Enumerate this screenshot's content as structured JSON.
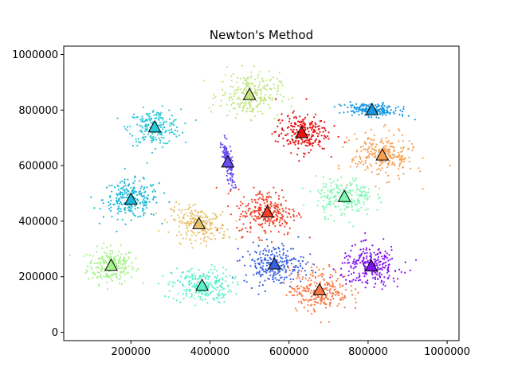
{
  "chart_data": {
    "type": "scatter",
    "title": "Newton's Method",
    "xlabel": "",
    "ylabel": "",
    "xlim": [
      30000,
      1030000
    ],
    "ylim": [
      -30000,
      1030000
    ],
    "x_ticks": [
      200000,
      400000,
      600000,
      800000,
      1000000
    ],
    "y_ticks": [
      0,
      200000,
      400000,
      600000,
      800000,
      1000000
    ],
    "x_tick_labels": [
      "200000",
      "400000",
      "600000",
      "800000",
      "1000000"
    ],
    "y_tick_labels": [
      "0",
      "200000",
      "400000",
      "600000",
      "800000",
      "1000000"
    ],
    "grid": false,
    "legend": "none",
    "clusters": [
      {
        "center": [
          150000,
          240000
        ],
        "spread": [
          30000,
          32000
        ],
        "rho": 0,
        "count": 220,
        "color": "#a6f28b"
      },
      {
        "center": [
          200000,
          478000
        ],
        "spread": [
          35000,
          34000
        ],
        "rho": 0,
        "count": 240,
        "color": "#1ab8d8"
      },
      {
        "center": [
          260000,
          738000
        ],
        "spread": [
          33000,
          32000
        ],
        "rho": 0,
        "count": 220,
        "color": "#2ac8d8"
      },
      {
        "center": [
          380000,
          168000
        ],
        "spread": [
          38000,
          32000
        ],
        "rho": 0,
        "count": 240,
        "color": "#5af0c8"
      },
      {
        "center": [
          372000,
          390000
        ],
        "spread": [
          36000,
          30000
        ],
        "rho": -0.3,
        "count": 230,
        "color": "#e8c26c"
      },
      {
        "center": [
          445000,
          612000
        ],
        "spread": [
          7000,
          38000
        ],
        "rho": -0.7,
        "count": 180,
        "color": "#6a4cf0"
      },
      {
        "center": [
          500000,
          855000
        ],
        "spread": [
          38000,
          40000
        ],
        "rho": 0,
        "count": 240,
        "color": "#c2e480"
      },
      {
        "center": [
          545000,
          432000
        ],
        "spread": [
          38000,
          42000
        ],
        "rho": 0,
        "count": 260,
        "color": "#f04028"
      },
      {
        "center": [
          563000,
          245000
        ],
        "spread": [
          38000,
          36000
        ],
        "rho": 0,
        "count": 250,
        "color": "#3860e0"
      },
      {
        "center": [
          632000,
          718000
        ],
        "spread": [
          33000,
          34000
        ],
        "rho": 0,
        "count": 230,
        "color": "#e81010"
      },
      {
        "center": [
          677000,
          152000
        ],
        "spread": [
          38000,
          38000
        ],
        "rho": 0,
        "count": 250,
        "color": "#f87848"
      },
      {
        "center": [
          740000,
          488000
        ],
        "spread": [
          36000,
          34000
        ],
        "rho": 0,
        "count": 230,
        "color": "#7ef8b0"
      },
      {
        "center": [
          808000,
          238000
        ],
        "spread": [
          38000,
          36000
        ],
        "rho": 0,
        "count": 250,
        "color": "#8010f0"
      },
      {
        "center": [
          810000,
          800000
        ],
        "spread": [
          34000,
          12000
        ],
        "rho": -0.4,
        "count": 200,
        "color": "#1898e0"
      },
      {
        "center": [
          836000,
          637000
        ],
        "spread": [
          40000,
          40000
        ],
        "rho": 0,
        "count": 250,
        "color": "#f8a050"
      }
    ],
    "centroid_marker": "triangle"
  }
}
